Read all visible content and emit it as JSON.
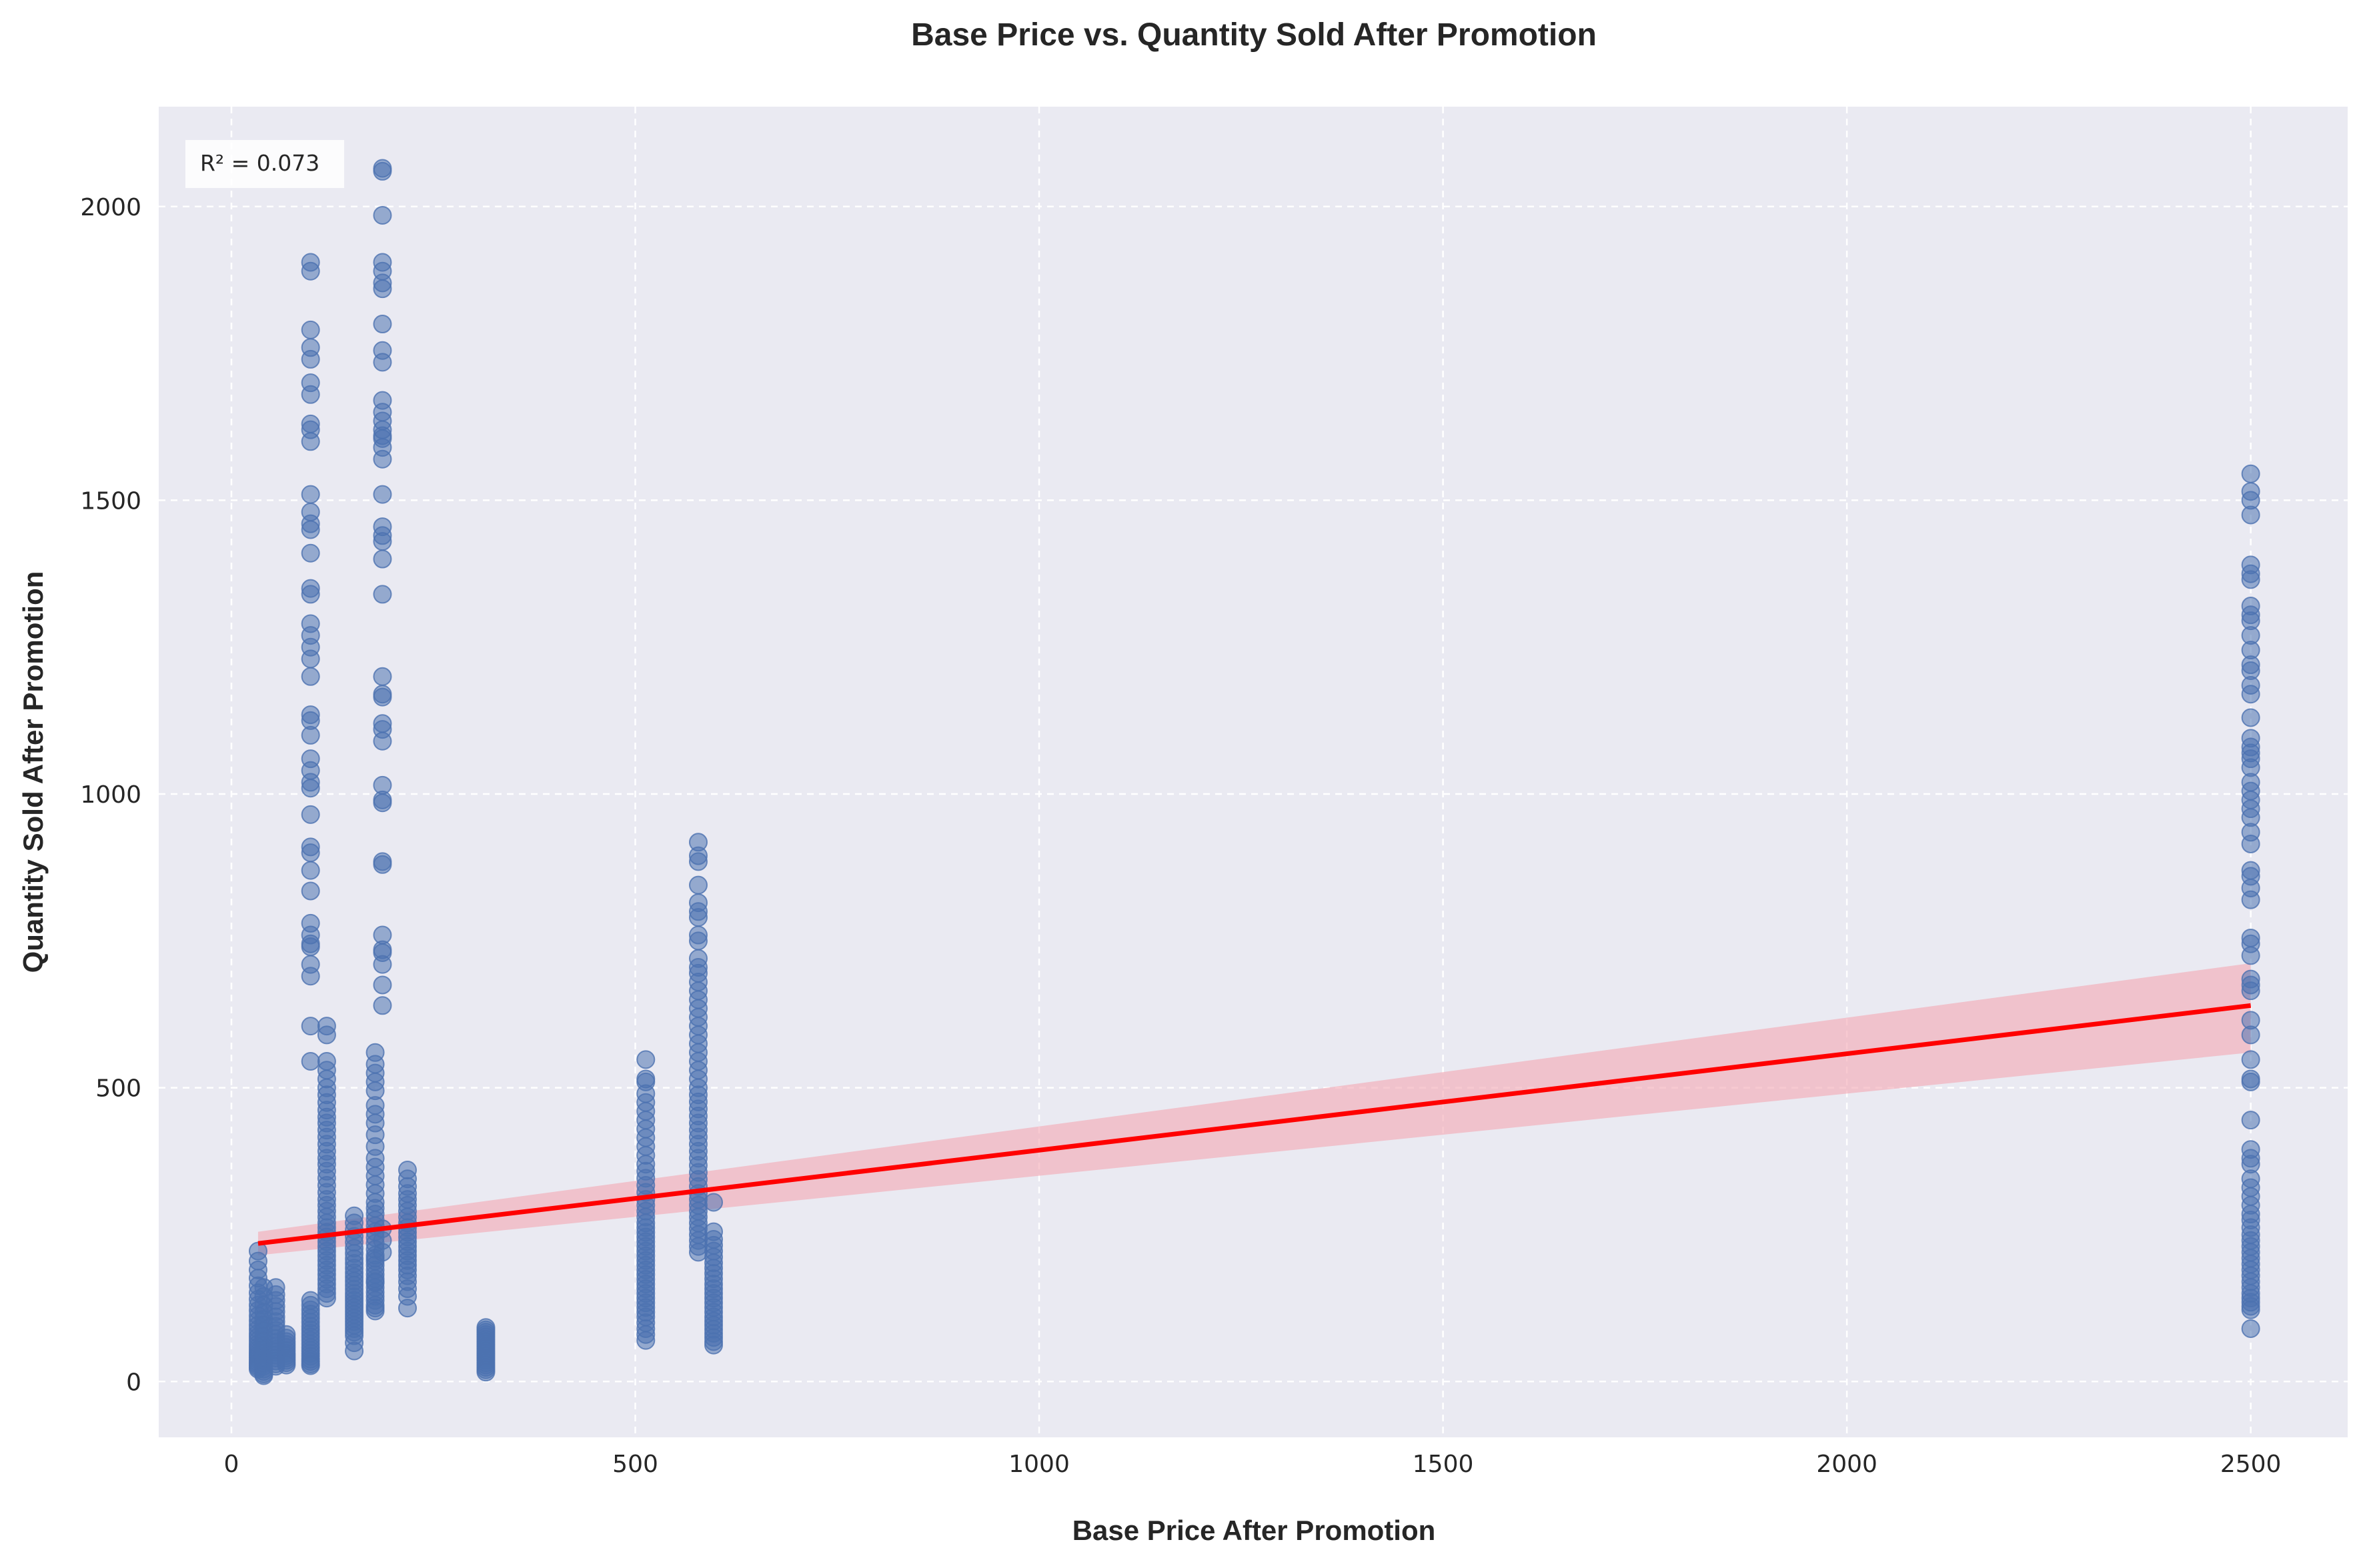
{
  "chart_data": {
    "type": "scatter",
    "title": "Base Price vs. Quantity Sold After Promotion",
    "xlabel": "Base Price After Promotion",
    "ylabel": "Quantity Sold After Promotion",
    "xlim": [
      -90,
      2620
    ],
    "ylim": [
      -95,
      2170
    ],
    "xticks": [
      0,
      500,
      1000,
      1500,
      2000,
      2500
    ],
    "yticks": [
      0,
      500,
      1000,
      1500,
      2000
    ],
    "grid": true,
    "annotation": "R² = 0.073",
    "colors": {
      "points": "#4c72b0",
      "line": "#ff0000",
      "band": "#f4a6b2",
      "background": "#eaeaf2"
    },
    "series": [
      {
        "x": [
          33,
          33,
          33,
          33,
          33,
          33,
          33,
          33,
          33,
          33,
          33,
          33,
          33,
          33,
          33,
          33,
          33,
          33,
          33,
          33,
          33,
          33,
          33,
          33,
          33,
          33,
          33,
          33
        ],
        "y": [
          222,
          205,
          190,
          176,
          163,
          151,
          140,
          130,
          121,
          112,
          104,
          96,
          89,
          82,
          76,
          70,
          64,
          59,
          54,
          49,
          45,
          41,
          37,
          33,
          30,
          27,
          24,
          21
        ]
      },
      {
        "x": [
          40,
          40,
          40,
          40,
          40,
          40,
          40,
          40,
          40,
          40,
          40,
          40,
          40,
          40,
          40,
          40,
          40,
          40,
          40,
          40
        ],
        "y": [
          160,
          145,
          130,
          118,
          106,
          96,
          86,
          77,
          69,
          61,
          54,
          48,
          42,
          36,
          31,
          26,
          21,
          17,
          13,
          10
        ]
      },
      {
        "x": [
          55,
          55,
          55,
          55,
          55,
          55,
          55,
          55,
          55,
          55,
          55,
          55,
          55,
          55,
          55,
          55,
          55,
          55,
          55,
          55
        ],
        "y": [
          160,
          148,
          138,
          128,
          119,
          110,
          102,
          94,
          87,
          80,
          73,
          67,
          61,
          55,
          50,
          45,
          40,
          35,
          30,
          26
        ]
      },
      {
        "x": [
          68,
          68,
          68,
          68,
          68,
          68,
          68,
          68,
          68,
          68,
          68,
          68
        ],
        "y": [
          80,
          74,
          68,
          63,
          58,
          53,
          48,
          44,
          40,
          36,
          32,
          28
        ]
      },
      {
        "x": [
          98,
          98,
          98,
          98,
          98,
          98,
          98,
          98,
          98,
          98,
          98,
          98,
          98,
          98,
          98,
          98,
          98,
          98,
          98,
          98,
          98,
          98,
          98,
          98,
          98,
          98,
          98,
          98,
          98,
          98,
          98,
          98,
          98,
          98,
          98,
          98,
          98,
          98,
          98,
          98,
          98,
          98,
          98,
          98,
          98,
          98,
          98,
          98,
          98,
          98,
          98,
          98,
          98,
          98,
          98,
          98,
          98,
          98,
          98,
          98,
          98,
          98
        ],
        "y": [
          1905,
          1890,
          1790,
          1760,
          1740,
          1700,
          1680,
          1630,
          1620,
          1600,
          1510,
          1480,
          1460,
          1450,
          1410,
          1350,
          1340,
          1290,
          1270,
          1250,
          1230,
          1200,
          1135,
          1125,
          1100,
          1060,
          1040,
          1020,
          1010,
          965,
          910,
          900,
          870,
          835,
          780,
          760,
          745,
          740,
          710,
          690,
          605,
          545,
          138,
          130,
          122,
          115,
          108,
          101,
          94,
          88,
          82,
          76,
          70,
          64,
          58,
          53,
          48,
          43,
          38,
          34,
          30,
          27
        ]
      },
      {
        "x": [
          118,
          118,
          118,
          118,
          118,
          118,
          118,
          118,
          118,
          118,
          118,
          118,
          118,
          118,
          118,
          118,
          118,
          118,
          118,
          118,
          118,
          118,
          118,
          118,
          118,
          118,
          118,
          118,
          118,
          118,
          118,
          118,
          118,
          118,
          118,
          118,
          118,
          118,
          118,
          118,
          118,
          118
        ],
        "y": [
          605,
          590,
          545,
          530,
          515,
          500,
          488,
          475,
          462,
          450,
          440,
          428,
          416,
          404,
          392,
          380,
          370,
          358,
          346,
          334,
          322,
          310,
          300,
          290,
          280,
          270,
          262,
          254,
          246,
          238,
          230,
          222,
          214,
          206,
          198,
          190,
          182,
          174,
          166,
          158,
          150,
          142
        ]
      },
      {
        "x": [
          152,
          152,
          152,
          152,
          152,
          152,
          152,
          152,
          152,
          152,
          152,
          152,
          152,
          152,
          152,
          152,
          152,
          152,
          152,
          152,
          152,
          152,
          152,
          152,
          152,
          152,
          152,
          152,
          152,
          152
        ],
        "y": [
          282,
          270,
          258,
          247,
          237,
          227,
          218,
          209,
          201,
          193,
          185,
          178,
          171,
          164,
          157,
          150,
          144,
          138,
          132,
          126,
          120,
          114,
          108,
          102,
          96,
          90,
          84,
          78,
          66,
          52
        ]
      },
      {
        "x": [
          178,
          178,
          178,
          178,
          178,
          178,
          178,
          178,
          178,
          178,
          178,
          178,
          178,
          178,
          178,
          178,
          178,
          178,
          178,
          178,
          178,
          178,
          178,
          178,
          178,
          178,
          178,
          178,
          178,
          178,
          178,
          178,
          178,
          178,
          178,
          178,
          178,
          178,
          178,
          178
        ],
        "y": [
          560,
          540,
          525,
          510,
          495,
          470,
          455,
          440,
          420,
          400,
          380,
          365,
          350,
          335,
          320,
          305,
          295,
          285,
          275,
          265,
          255,
          245,
          235,
          225,
          215,
          205,
          198,
          190,
          182,
          175,
          168,
          160,
          152,
          145,
          138,
          130,
          125,
          120,
          170,
          210
        ]
      },
      {
        "x": [
          187,
          187,
          187,
          187,
          187,
          187,
          187,
          187,
          187,
          187,
          187,
          187,
          187,
          187,
          187,
          187,
          187,
          187,
          187,
          187,
          187,
          187,
          187,
          187,
          187,
          187,
          187,
          187,
          187,
          187,
          187,
          187,
          187,
          187,
          187,
          187,
          187,
          187,
          187,
          187,
          187,
          187,
          187,
          187
        ],
        "y": [
          2065,
          2060,
          1985,
          1905,
          1890,
          1870,
          1860,
          1800,
          1755,
          1735,
          1670,
          1650,
          1635,
          1620,
          1610,
          1605,
          1590,
          1570,
          1510,
          1455,
          1440,
          1430,
          1400,
          1340,
          1200,
          1170,
          1165,
          1120,
          1110,
          1090,
          1015,
          990,
          985,
          885,
          880,
          760,
          735,
          730,
          710,
          675,
          640,
          260,
          240,
          220
        ]
      },
      {
        "x": [
          218,
          218,
          218,
          218,
          218,
          218,
          218,
          218,
          218,
          218,
          218,
          218,
          218,
          218,
          218,
          218,
          218,
          218,
          218,
          218,
          218,
          218,
          218,
          218
        ],
        "y": [
          360,
          345,
          332,
          320,
          310,
          300,
          290,
          280,
          270,
          262,
          254,
          246,
          238,
          230,
          222,
          214,
          206,
          198,
          190,
          180,
          170,
          158,
          145,
          125
        ]
      },
      {
        "x": [
          315,
          315,
          315,
          315,
          315,
          315,
          315,
          315,
          315,
          315,
          315,
          315,
          315,
          315,
          315,
          315,
          315,
          315,
          315,
          315
        ],
        "y": [
          92,
          88,
          84,
          80,
          76,
          72,
          68,
          64,
          60,
          56,
          52,
          48,
          44,
          40,
          36,
          32,
          28,
          24,
          20,
          16
        ]
      },
      {
        "x": [
          513,
          513,
          513,
          513,
          513,
          513,
          513,
          513,
          513,
          513,
          513,
          513,
          513,
          513,
          513,
          513,
          513,
          513,
          513,
          513,
          513,
          513,
          513,
          513,
          513,
          513,
          513,
          513,
          513,
          513,
          513,
          513,
          513,
          513,
          513,
          513,
          513,
          513,
          513,
          513,
          513,
          513,
          513,
          513,
          513
        ],
        "y": [
          548,
          515,
          510,
          490,
          475,
          460,
          445,
          430,
          415,
          400,
          385,
          370,
          358,
          346,
          334,
          322,
          310,
          300,
          290,
          280,
          270,
          262,
          254,
          246,
          238,
          230,
          222,
          214,
          206,
          198,
          190,
          182,
          174,
          166,
          158,
          150,
          142,
          134,
          126,
          118,
          110,
          100,
          90,
          80,
          70
        ]
      },
      {
        "x": [
          578,
          578,
          578,
          578,
          578,
          578,
          578,
          578,
          578,
          578,
          578,
          578,
          578,
          578,
          578,
          578,
          578,
          578,
          578,
          578,
          578,
          578,
          578,
          578,
          578,
          578,
          578,
          578,
          578,
          578,
          578,
          578,
          578,
          578,
          578,
          578,
          578,
          578,
          578,
          578,
          578,
          578,
          578,
          578,
          578,
          578,
          578,
          578,
          578,
          578
        ],
        "y": [
          918,
          895,
          885,
          845,
          815,
          800,
          790,
          760,
          750,
          720,
          705,
          695,
          680,
          665,
          650,
          635,
          620,
          605,
          590,
          575,
          560,
          545,
          530,
          515,
          500,
          488,
          476,
          464,
          452,
          440,
          428,
          416,
          404,
          392,
          380,
          368,
          356,
          344,
          332,
          320,
          310,
          300,
          290,
          280,
          270,
          260,
          250,
          240,
          230,
          220
        ]
      },
      {
        "x": [
          597,
          597,
          597,
          597,
          597,
          597,
          597,
          597,
          597,
          597,
          597,
          597,
          597,
          597,
          597,
          597,
          597,
          597,
          597,
          597,
          597,
          597,
          597,
          597,
          597
        ],
        "y": [
          305,
          255,
          242,
          232,
          222,
          212,
          202,
          193,
          184,
          175,
          166,
          158,
          150,
          142,
          134,
          126,
          118,
          110,
          103,
          96,
          89,
          82,
          75,
          68,
          62
        ]
      },
      {
        "x": [
          2500,
          2500,
          2500,
          2500,
          2500,
          2500,
          2500,
          2500,
          2500,
          2500,
          2500,
          2500,
          2500,
          2500,
          2500,
          2500,
          2500,
          2500,
          2500,
          2500,
          2500,
          2500,
          2500,
          2500,
          2500,
          2500,
          2500,
          2500,
          2500,
          2500,
          2500,
          2500,
          2500,
          2500,
          2500,
          2500,
          2500,
          2500,
          2500,
          2500,
          2500,
          2500,
          2500,
          2500,
          2500,
          2500,
          2500,
          2500,
          2500,
          2500,
          2500,
          2500,
          2500,
          2500,
          2500,
          2500,
          2500,
          2500,
          2500,
          2500,
          2500,
          2500,
          2500,
          2500,
          2500,
          2500,
          2500,
          2500,
          2500,
          2500,
          2500
        ],
        "y": [
          1545,
          1515,
          1500,
          1475,
          1390,
          1375,
          1365,
          1320,
          1305,
          1295,
          1270,
          1245,
          1220,
          1210,
          1185,
          1170,
          1130,
          1095,
          1080,
          1070,
          1060,
          1045,
          1020,
          1005,
          990,
          975,
          960,
          935,
          915,
          870,
          860,
          840,
          820,
          755,
          745,
          725,
          685,
          675,
          665,
          615,
          590,
          548,
          515,
          510,
          445,
          395,
          380,
          370,
          345,
          330,
          315,
          300,
          285,
          275,
          262,
          250,
          240,
          230,
          220,
          210,
          200,
          190,
          180,
          170,
          160,
          150,
          142,
          135,
          128,
          122,
          90
        ]
      }
    ],
    "regression": {
      "x": [
        33,
        2500
      ],
      "y": [
        235,
        640
      ],
      "band_lower": [
        215,
        560
      ],
      "band_upper": [
        255,
        712
      ]
    }
  }
}
